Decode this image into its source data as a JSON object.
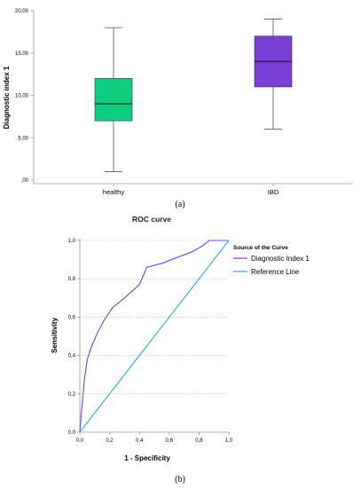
{
  "chart_data": [
    {
      "type": "box",
      "panel_label": "(a)",
      "ylabel": "Diagnostic index 1",
      "ylim": [
        0,
        20
      ],
      "yticks": [
        0,
        5,
        10,
        15,
        20
      ],
      "ytick_labels": [
        ",00",
        "5,00",
        "10,00",
        "15,00",
        "20,00"
      ],
      "categories": [
        "healthy",
        "IBD"
      ],
      "boxes": [
        {
          "category": "healthy",
          "min": 1,
          "q1": 7,
          "median": 9,
          "q3": 12,
          "max": 18,
          "color": "#0fcc7f"
        },
        {
          "category": "IBD",
          "min": 6,
          "q1": 11,
          "median": 14,
          "q3": 17,
          "max": 19,
          "color": "#7a3fd6"
        }
      ]
    },
    {
      "type": "line",
      "panel_label": "(b)",
      "title": "ROC curve",
      "xlabel": "1 - Specificity",
      "ylabel": "Sensitivity",
      "xlim": [
        0,
        1
      ],
      "ylim": [
        0,
        1
      ],
      "xticks": [
        0,
        0.2,
        0.4,
        0.6,
        0.8,
        1.0
      ],
      "xtick_labels": [
        "0,0",
        "0,2",
        "0,4",
        "0,6",
        "0,8",
        "1,0"
      ],
      "yticks": [
        0,
        0.2,
        0.4,
        0.6,
        0.8,
        1.0
      ],
      "ytick_labels": [
        "0,0",
        "0,2",
        "0,4",
        "0,6",
        "0,8",
        "1,0"
      ],
      "grid": "horizontal-dotted",
      "legend_title": "Source of the Curve",
      "legend_position": "right",
      "series": [
        {
          "name": "Diagnostic Index 1",
          "color": "#7a3fd6",
          "x": [
            0,
            0.01,
            0.02,
            0.03,
            0.05,
            0.08,
            0.12,
            0.16,
            0.22,
            0.3,
            0.4,
            0.45,
            0.55,
            0.65,
            0.75,
            0.82,
            0.87,
            0.95,
            1.0
          ],
          "y": [
            0,
            0.1,
            0.18,
            0.27,
            0.38,
            0.45,
            0.52,
            0.58,
            0.65,
            0.7,
            0.77,
            0.86,
            0.88,
            0.91,
            0.94,
            0.97,
            1.0,
            1.0,
            1.0
          ]
        },
        {
          "name": "Reference Line",
          "color": "#29a9df",
          "x": [
            0,
            1
          ],
          "y": [
            0,
            1
          ]
        }
      ]
    }
  ]
}
